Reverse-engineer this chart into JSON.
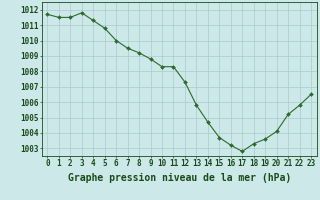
{
  "x": [
    0,
    1,
    2,
    3,
    4,
    5,
    6,
    7,
    8,
    9,
    10,
    11,
    12,
    13,
    14,
    15,
    16,
    17,
    18,
    19,
    20,
    21,
    22,
    23
  ],
  "y": [
    1011.7,
    1011.5,
    1011.5,
    1011.8,
    1011.3,
    1010.8,
    1010.0,
    1009.5,
    1009.2,
    1008.8,
    1008.3,
    1008.3,
    1007.3,
    1005.8,
    1004.7,
    1003.7,
    1003.2,
    1002.8,
    1003.3,
    1003.6,
    1004.1,
    1005.2,
    1005.8,
    1006.5
  ],
  "line_color": "#2d6a2d",
  "marker_color": "#2d6a2d",
  "bg_color": "#cce8e8",
  "grid_color": "#aacccc",
  "text_color": "#1a4a1a",
  "xlabel": "Graphe pression niveau de la mer (hPa)",
  "ylim": [
    1002.5,
    1012.5
  ],
  "yticks": [
    1003,
    1004,
    1005,
    1006,
    1007,
    1008,
    1009,
    1010,
    1011,
    1012
  ],
  "xticks": [
    0,
    1,
    2,
    3,
    4,
    5,
    6,
    7,
    8,
    9,
    10,
    11,
    12,
    13,
    14,
    15,
    16,
    17,
    18,
    19,
    20,
    21,
    22,
    23
  ],
  "tick_fontsize": 5.5,
  "xlabel_fontsize": 7.0
}
